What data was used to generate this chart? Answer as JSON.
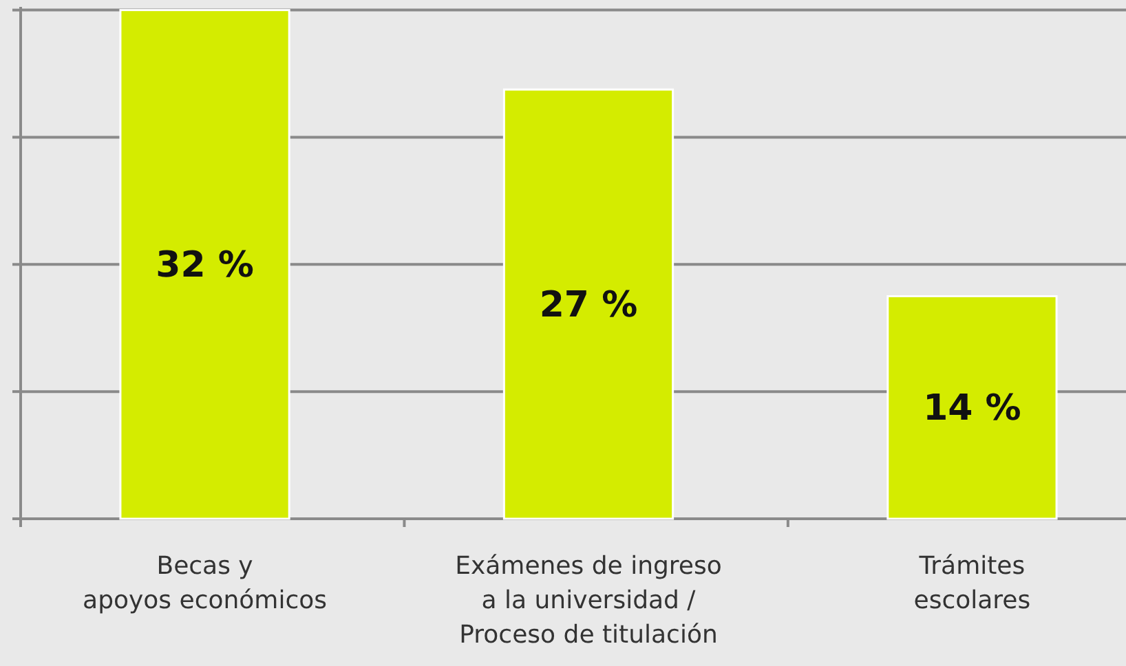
{
  "chart_data": {
    "type": "bar",
    "categories": [
      "Becas y\napoyos económicos",
      "Exámenes de ingreso\na la universidad /\nProceso de titulación",
      "Trámites\nescolares"
    ],
    "values": [
      32,
      27,
      14
    ],
    "value_labels": [
      "32 %",
      "27 %",
      "14 %"
    ],
    "color": "#d4ec00",
    "ylim": [
      0,
      32.2
    ],
    "yticks": [
      {
        "value": 0,
        "label": null
      },
      {
        "value": 8,
        "label": null
      },
      {
        "value": 16,
        "label": null
      },
      {
        "value": 24,
        "label": null
      },
      {
        "value": 32,
        "label": null
      }
    ],
    "tick_labels": "x",
    "grid": "y"
  }
}
